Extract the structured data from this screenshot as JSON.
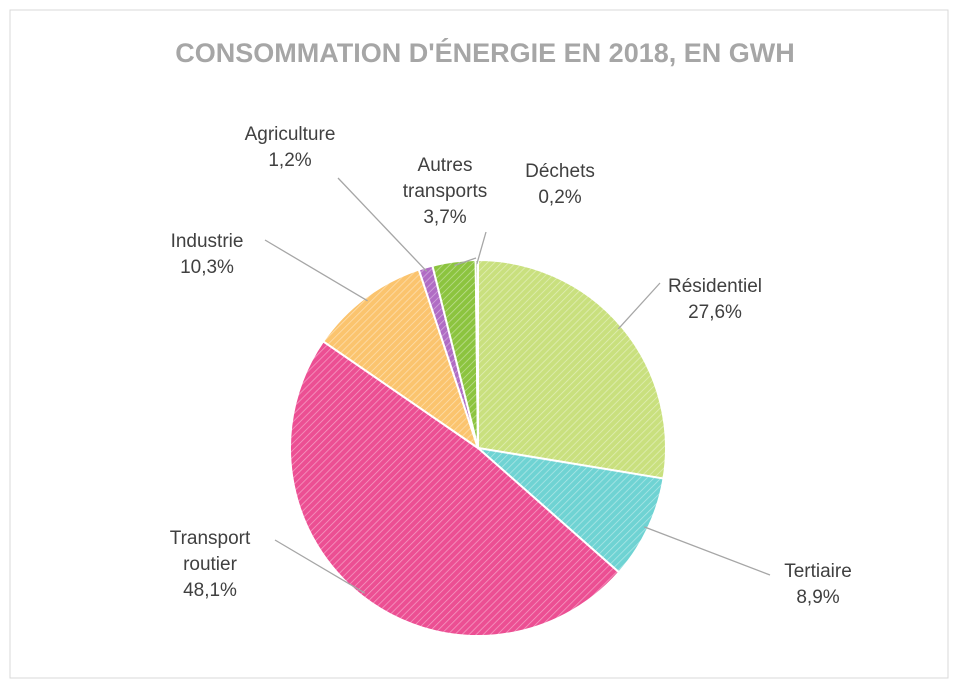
{
  "chart_data": {
    "type": "pie",
    "title": "CONSOMMATION D'ÉNERGIE EN 2018, EN GWH",
    "categories": [
      "Résidentiel",
      "Tertiaire",
      "Transport routier",
      "Industrie",
      "Agriculture",
      "Autres transports",
      "Déchets"
    ],
    "values": [
      27.6,
      8.9,
      48.1,
      10.3,
      1.2,
      3.7,
      0.2
    ],
    "value_labels": [
      "27,6%",
      "8,9%",
      "48,1%",
      "10,3%",
      "1,2%",
      "3,7%",
      "0,2%"
    ],
    "colors": [
      "#c9e07e",
      "#6fd3d3",
      "#ec4f93",
      "#fbc46e",
      "#b06cc4",
      "#8cc43f",
      "#5e8f2a"
    ]
  }
}
